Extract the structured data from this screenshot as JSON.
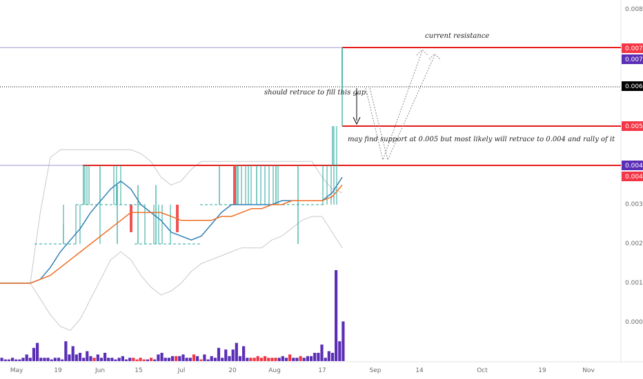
{
  "chart_data": {
    "type": "line",
    "x_ticks": [
      "May",
      "19",
      "Jun",
      "15",
      "Jul",
      "20",
      "Aug",
      "17",
      "Sep",
      "14",
      "Oct",
      "19",
      "Nov"
    ],
    "y_ticks": [
      "0.008",
      "0.007",
      "0.006",
      "0.005",
      "0.004",
      "0.003",
      "0.002",
      "0.001",
      "0.000"
    ],
    "price_tags": [
      {
        "label": "0.007",
        "y": 0.007,
        "color": "#f23645"
      },
      {
        "label": "0.007",
        "y": 0.0067,
        "color": "#5b2fb5"
      },
      {
        "label": "0.006",
        "y": 0.006,
        "color": "#000000"
      },
      {
        "label": "0.005",
        "y": 0.005,
        "color": "#f23645"
      },
      {
        "label": "0.004",
        "y": 0.004,
        "color": "#5b2fb5"
      },
      {
        "label": "0.004",
        "y": 0.0037,
        "color": "#f23645"
      }
    ],
    "horizontal_levels": [
      {
        "y": 0.007,
        "color": "#e61919",
        "style": "solid",
        "from": "Aug 20"
      },
      {
        "y": 0.005,
        "color": "#e61919",
        "style": "solid",
        "from": "Aug 20"
      },
      {
        "y": 0.004,
        "color": "#e61919",
        "style": "solid",
        "from": "May 19"
      },
      {
        "y": 0.006,
        "color": "#000000",
        "style": "dotted",
        "from": "start"
      },
      {
        "y": 0.007,
        "color": "#9a9ad0",
        "style": "thin",
        "from": "start"
      },
      {
        "y": 0.004,
        "color": "#9a9ad0",
        "style": "thin",
        "from": "start"
      }
    ],
    "annotations": [
      {
        "text": "current resistance"
      },
      {
        "text": "should retrace to fill this gap."
      },
      {
        "text": "may find support at 0.005 but most likely will retrace to 0.004 and rally of it"
      }
    ],
    "ylim": [
      -0.0009,
      0.0083
    ],
    "grid": false,
    "series": [
      {
        "values": [
          0.001,
          0.001,
          0.001,
          0.001,
          0.0011,
          0.0014,
          0.0018,
          0.0021,
          0.0024,
          0.0028,
          0.0031,
          0.0034,
          0.0036,
          0.0034,
          0.003,
          0.0028,
          0.0026,
          0.0023,
          0.0022,
          0.0021,
          0.0022,
          0.0025,
          0.0028,
          0.003,
          0.003,
          0.003,
          0.003,
          0.003,
          0.0031,
          0.0031,
          0.0031,
          0.0031,
          0.0031,
          0.0033,
          0.0037
        ],
        "color": "#2f7fb5"
      },
      {
        "values": [
          0.001,
          0.001,
          0.001,
          0.001,
          0.0011,
          0.0012,
          0.0014,
          0.0016,
          0.0018,
          0.002,
          0.0022,
          0.0024,
          0.0026,
          0.0028,
          0.0028,
          0.0028,
          0.0028,
          0.0027,
          0.0026,
          0.0026,
          0.0026,
          0.0026,
          0.0027,
          0.0027,
          0.0028,
          0.0029,
          0.0029,
          0.003,
          0.003,
          0.0031,
          0.0031,
          0.0031,
          0.0031,
          0.0032,
          0.0035
        ],
        "color": "#ef6c22"
      },
      {
        "values": [
          0.001,
          0.001,
          0.001,
          0.001,
          0.0028,
          0.0042,
          0.0044,
          0.0044,
          0.0044,
          0.0044,
          0.0044,
          0.0044,
          0.0044,
          0.0044,
          0.0043,
          0.0041,
          0.0037,
          0.0035,
          0.0036,
          0.0039,
          0.0041,
          0.0041,
          0.0041,
          0.0041,
          0.0041,
          0.0041,
          0.0041,
          0.0041,
          0.0041,
          0.0041,
          0.0041,
          0.0041,
          0.0037,
          0.0034,
          0.0033
        ],
        "color": "#c8c8c8"
      },
      {
        "values": [
          0.001,
          0.001,
          0.001,
          0.001,
          0.0006,
          0.0002,
          -0.0001,
          -0.0002,
          0.0001,
          0.0006,
          0.0011,
          0.0016,
          0.0018,
          0.0016,
          0.0012,
          0.0009,
          0.0007,
          0.0008,
          0.001,
          0.0013,
          0.0015,
          0.0016,
          0.0017,
          0.0018,
          0.0019,
          0.0019,
          0.0019,
          0.0021,
          0.0022,
          0.0024,
          0.0026,
          0.0027,
          0.0027,
          0.0023,
          0.0019
        ],
        "color": "#c8c8c8"
      }
    ],
    "volume": [
      {
        "v": 0.02,
        "c": "#5b2fb5"
      },
      {
        "v": 0.01,
        "c": "#5b2fb5"
      },
      {
        "v": 0.01,
        "c": "#5b2fb5"
      },
      {
        "v": 0.02,
        "c": "#5b2fb5"
      },
      {
        "v": 0.01,
        "c": "#5b2fb5"
      },
      {
        "v": 0.01,
        "c": "#5b2fb5"
      },
      {
        "v": 0.02,
        "c": "#5b2fb5"
      },
      {
        "v": 0.04,
        "c": "#5b2fb5"
      },
      {
        "v": 0.02,
        "c": "#5b2fb5"
      },
      {
        "v": 0.08,
        "c": "#5b2fb5"
      },
      {
        "v": 0.11,
        "c": "#5b2fb5"
      },
      {
        "v": 0.02,
        "c": "#5b2fb5"
      },
      {
        "v": 0.02,
        "c": "#5b2fb5"
      },
      {
        "v": 0.02,
        "c": "#5b2fb5"
      },
      {
        "v": 0.01,
        "c": "#5b2fb5"
      },
      {
        "v": 0.02,
        "c": "#5b2fb5"
      },
      {
        "v": 0.02,
        "c": "#5b2fb5"
      },
      {
        "v": 0.01,
        "c": "#5b2fb5"
      },
      {
        "v": 0.12,
        "c": "#5b2fb5"
      },
      {
        "v": 0.04,
        "c": "#5b2fb5"
      },
      {
        "v": 0.09,
        "c": "#5b2fb5"
      },
      {
        "v": 0.04,
        "c": "#5b2fb5"
      },
      {
        "v": 0.05,
        "c": "#5b2fb5"
      },
      {
        "v": 0.02,
        "c": "#5b2fb5"
      },
      {
        "v": 0.06,
        "c": "#5b2fb5"
      },
      {
        "v": 0.03,
        "c": "#5b2fb5"
      },
      {
        "v": 0.02,
        "c": "#f23645"
      },
      {
        "v": 0.04,
        "c": "#5b2fb5"
      },
      {
        "v": 0.02,
        "c": "#5b2fb5"
      },
      {
        "v": 0.05,
        "c": "#5b2fb5"
      },
      {
        "v": 0.02,
        "c": "#5b2fb5"
      },
      {
        "v": 0.02,
        "c": "#5b2fb5"
      },
      {
        "v": 0.01,
        "c": "#5b2fb5"
      },
      {
        "v": 0.02,
        "c": "#5b2fb5"
      },
      {
        "v": 0.03,
        "c": "#5b2fb5"
      },
      {
        "v": 0.01,
        "c": "#5b2fb5"
      },
      {
        "v": 0.02,
        "c": "#5b2fb5"
      },
      {
        "v": 0.02,
        "c": "#f23645"
      },
      {
        "v": 0.01,
        "c": "#f23645"
      },
      {
        "v": 0.02,
        "c": "#f23645"
      },
      {
        "v": 0.01,
        "c": "#f23645"
      },
      {
        "v": 0.01,
        "c": "#5b2fb5"
      },
      {
        "v": 0.02,
        "c": "#f23645"
      },
      {
        "v": 0.01,
        "c": "#5b2fb5"
      },
      {
        "v": 0.04,
        "c": "#5b2fb5"
      },
      {
        "v": 0.05,
        "c": "#5b2fb5"
      },
      {
        "v": 0.02,
        "c": "#5b2fb5"
      },
      {
        "v": 0.02,
        "c": "#5b2fb5"
      },
      {
        "v": 0.03,
        "c": "#5b2fb5"
      },
      {
        "v": 0.03,
        "c": "#f23645"
      },
      {
        "v": 0.03,
        "c": "#5b2fb5"
      },
      {
        "v": 0.04,
        "c": "#5b2fb5"
      },
      {
        "v": 0.02,
        "c": "#5b2fb5"
      },
      {
        "v": 0.02,
        "c": "#5b2fb5"
      },
      {
        "v": 0.04,
        "c": "#f23645"
      },
      {
        "v": 0.03,
        "c": "#5b2fb5"
      },
      {
        "v": 0.01,
        "c": "#f23645"
      },
      {
        "v": 0.04,
        "c": "#5b2fb5"
      },
      {
        "v": 0.01,
        "c": "#5b2fb5"
      },
      {
        "v": 0.03,
        "c": "#5b2fb5"
      },
      {
        "v": 0.02,
        "c": "#5b2fb5"
      },
      {
        "v": 0.08,
        "c": "#5b2fb5"
      },
      {
        "v": 0.02,
        "c": "#5b2fb5"
      },
      {
        "v": 0.07,
        "c": "#5b2fb5"
      },
      {
        "v": 0.03,
        "c": "#5b2fb5"
      },
      {
        "v": 0.07,
        "c": "#5b2fb5"
      },
      {
        "v": 0.11,
        "c": "#5b2fb5"
      },
      {
        "v": 0.03,
        "c": "#5b2fb5"
      },
      {
        "v": 0.09,
        "c": "#5b2fb5"
      },
      {
        "v": 0.02,
        "c": "#5b2fb5"
      },
      {
        "v": 0.02,
        "c": "#f23645"
      },
      {
        "v": 0.02,
        "c": "#f23645"
      },
      {
        "v": 0.03,
        "c": "#f23645"
      },
      {
        "v": 0.02,
        "c": "#f23645"
      },
      {
        "v": 0.03,
        "c": "#f23645"
      },
      {
        "v": 0.02,
        "c": "#f23645"
      },
      {
        "v": 0.02,
        "c": "#f23645"
      },
      {
        "v": 0.02,
        "c": "#f23645"
      },
      {
        "v": 0.02,
        "c": "#5b2fb5"
      },
      {
        "v": 0.03,
        "c": "#5b2fb5"
      },
      {
        "v": 0.02,
        "c": "#5b2fb5"
      },
      {
        "v": 0.04,
        "c": "#f23645"
      },
      {
        "v": 0.02,
        "c": "#5b2fb5"
      },
      {
        "v": 0.02,
        "c": "#5b2fb5"
      },
      {
        "v": 0.03,
        "c": "#f23645"
      },
      {
        "v": 0.02,
        "c": "#5b2fb5"
      },
      {
        "v": 0.03,
        "c": "#5b2fb5"
      },
      {
        "v": 0.03,
        "c": "#5b2fb5"
      },
      {
        "v": 0.05,
        "c": "#5b2fb5"
      },
      {
        "v": 0.05,
        "c": "#5b2fb5"
      },
      {
        "v": 0.1,
        "c": "#5b2fb5"
      },
      {
        "v": 0.02,
        "c": "#5b2fb5"
      },
      {
        "v": 0.06,
        "c": "#5b2fb5"
      },
      {
        "v": 0.05,
        "c": "#5b2fb5"
      },
      {
        "v": 0.55,
        "c": "#5b2fb5"
      },
      {
        "v": 0.12,
        "c": "#5b2fb5"
      },
      {
        "v": 0.24,
        "c": "#5b2fb5"
      }
    ],
    "price_bars": [
      {
        "x": "May 27",
        "values": [
          0.002,
          0.0025,
          0.002
        ]
      },
      {
        "x": "Jun 3",
        "values": [
          0.003,
          0.004,
          0.003
        ]
      },
      {
        "x": "Jun 10",
        "values": [
          0.003,
          0.004,
          0.003
        ]
      },
      {
        "x": "Jun 17",
        "values": [
          0.003,
          0.0035,
          0.002
        ]
      },
      {
        "x": "Jun 24",
        "values": [
          0.003,
          0.0035,
          0.002
        ]
      },
      {
        "x": "Jul 1",
        "values": [
          0.003,
          0.0035,
          0.002
        ]
      },
      {
        "x": "Jul 15",
        "values": [
          0.003,
          0.004,
          0.003
        ]
      },
      {
        "x": "Jul 22",
        "values": [
          0.003,
          0.004,
          0.003
        ]
      },
      {
        "x": "Jul 29",
        "values": [
          0.003,
          0.004,
          0.003
        ]
      },
      {
        "x": "Aug 5",
        "values": [
          0.003,
          0.004,
          0.003
        ]
      },
      {
        "x": "Aug 12",
        "values": [
          0.003,
          0.004,
          0.002
        ]
      },
      {
        "x": "Aug 19",
        "values": [
          0.004,
          0.005,
          0.004
        ]
      },
      {
        "x": "Aug 20",
        "values": [
          0.005,
          0.007,
          0.005
        ]
      }
    ]
  }
}
